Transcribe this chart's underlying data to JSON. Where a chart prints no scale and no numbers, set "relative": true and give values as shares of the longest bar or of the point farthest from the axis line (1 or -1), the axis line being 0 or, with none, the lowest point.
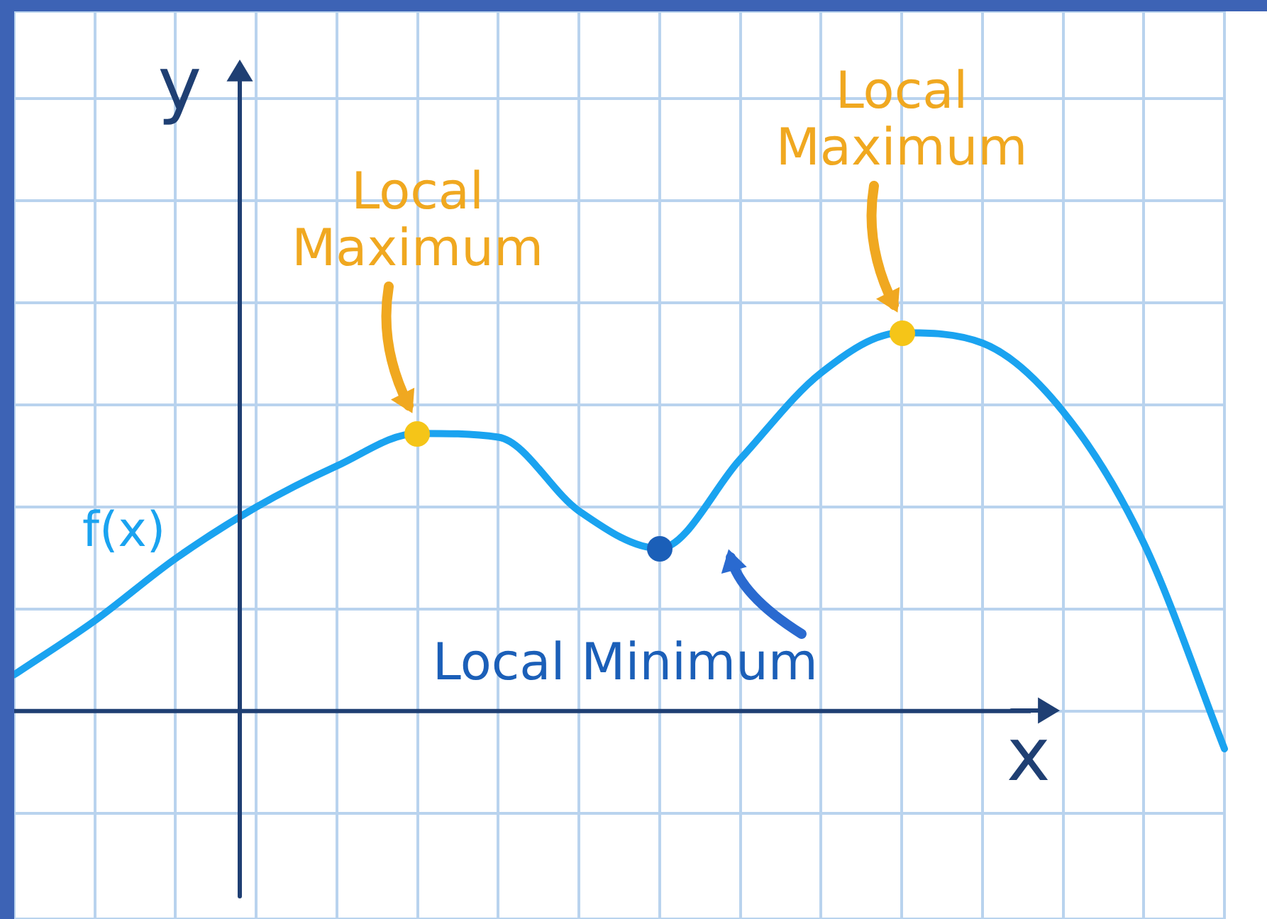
{
  "chart_data": {
    "type": "line",
    "relative": true,
    "xlabel": "x",
    "ylabel": "y",
    "grid": true,
    "marker": "none",
    "legend": false,
    "categories": [
      null,
      null,
      null,
      null,
      null,
      null,
      null,
      null,
      null,
      null,
      null,
      null,
      null,
      null,
      null,
      null
    ],
    "series": [
      {
        "name": "f(x)",
        "color": "#1aa3f0",
        "values": [
          0.096,
          0.239,
          0.403,
          0.539,
          0.648,
          0.734,
          0.724,
          0.529,
          0.43,
          0.666,
          0.894,
          1,
          0.973,
          0.792,
          0.444,
          -0.1
        ]
      }
    ],
    "ref_lines": [
      {
        "axis": "y",
        "value": 0,
        "color": "#1f3f73"
      }
    ],
    "annotations": [
      "Local Maximum",
      "Local Minimum",
      "Local Maximum"
    ]
  }
}
